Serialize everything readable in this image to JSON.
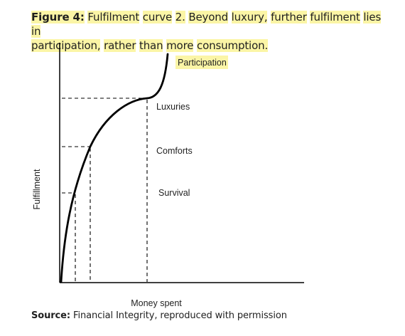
{
  "caption": {
    "figure_label": "Figure 4:",
    "words": [
      "Fulfilment",
      "curve",
      "2.",
      "Beyond",
      "luxury,",
      "further",
      "fulfilment",
      "lies",
      "in",
      "participation,",
      "rather",
      "than",
      "more",
      "consumption",
      "."
    ],
    "line_break_after": 8
  },
  "diagram": {
    "y_axis_label": "Fulfillment",
    "x_axis_label": "Money spent",
    "stage_labels": {
      "participation": "Participation",
      "luxuries": "Luxuries",
      "comforts": "Comforts",
      "survival": "Survival"
    },
    "highlight_color": "#fbf5a6"
  },
  "source": {
    "label": "Source:",
    "text": " Financial Integrity, reproduced with permission"
  }
}
